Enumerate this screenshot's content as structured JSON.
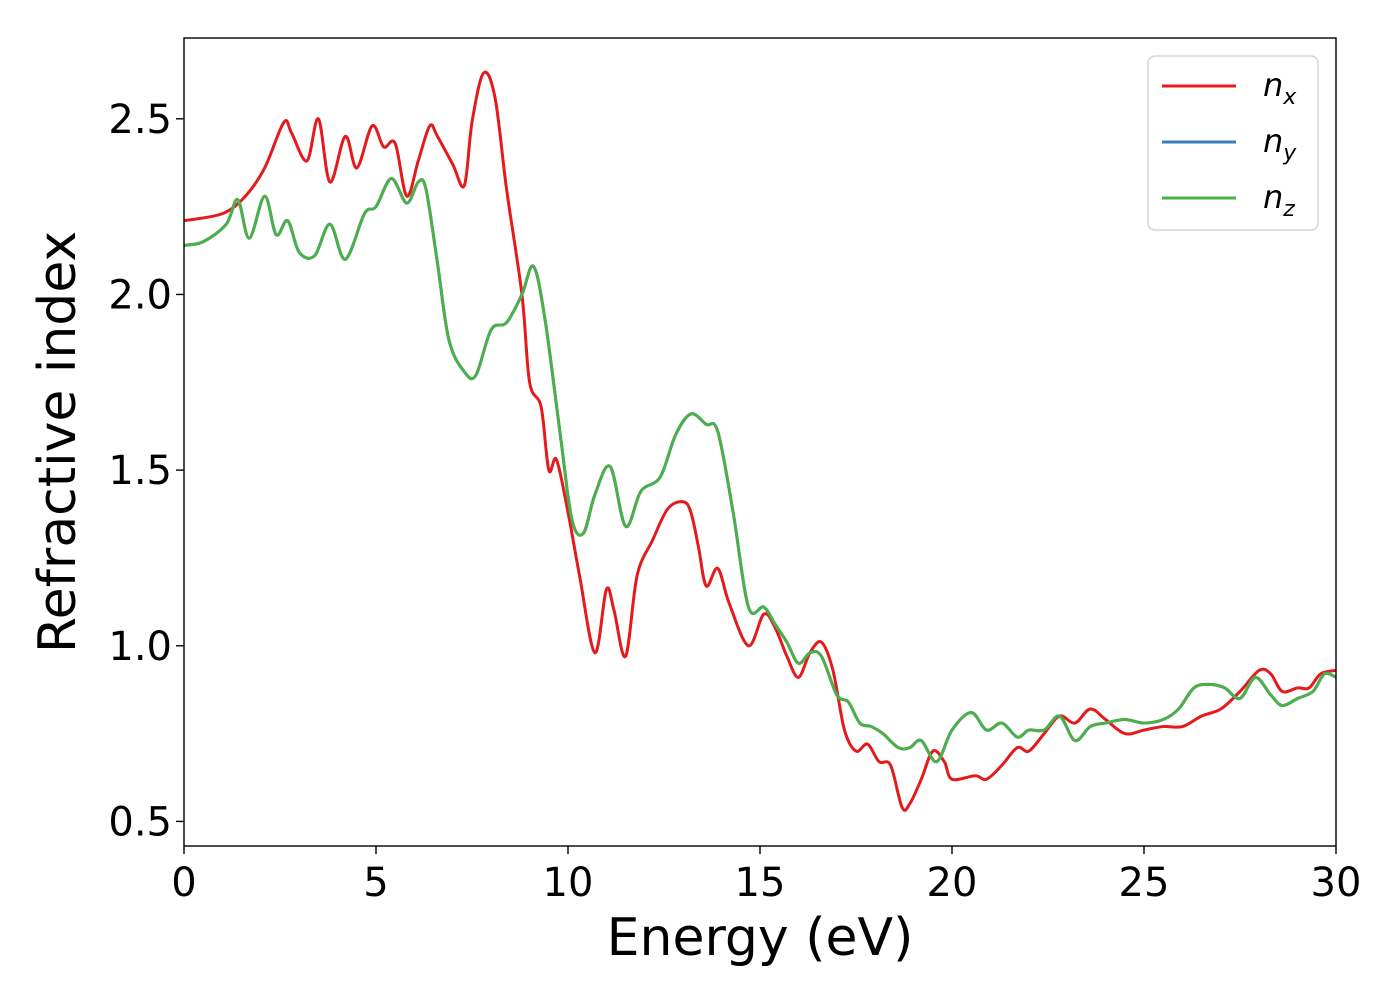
{
  "chart_data": {
    "type": "line",
    "xlabel": "Energy (eV)",
    "ylabel": "Refractive index",
    "xlim": [
      0,
      30
    ],
    "ylim": [
      0.43,
      2.73
    ],
    "xticks": [
      0,
      5,
      10,
      15,
      20,
      25,
      30
    ],
    "xtick_labels": [
      "0",
      "5",
      "10",
      "15",
      "20",
      "25",
      "30"
    ],
    "yticks": [
      0.5,
      1.0,
      1.5,
      2.0,
      2.5
    ],
    "ytick_labels": [
      "0.5",
      "1.0",
      "1.5",
      "2.0",
      "2.5"
    ],
    "grid": false,
    "legend_position": "top-right",
    "series": [
      {
        "name": "n_x",
        "label_base": "n",
        "label_sub": "x",
        "color": "#e41a1c",
        "points": [
          [
            0,
            2.21
          ],
          [
            1,
            2.23
          ],
          [
            1.6,
            2.28
          ],
          [
            2.1,
            2.36
          ],
          [
            2.6,
            2.49
          ],
          [
            2.8,
            2.46
          ],
          [
            3.2,
            2.38
          ],
          [
            3.5,
            2.5
          ],
          [
            3.8,
            2.32
          ],
          [
            4.2,
            2.45
          ],
          [
            4.5,
            2.36
          ],
          [
            4.9,
            2.48
          ],
          [
            5.2,
            2.42
          ],
          [
            5.5,
            2.43
          ],
          [
            5.8,
            2.28
          ],
          [
            6.1,
            2.38
          ],
          [
            6.4,
            2.48
          ],
          [
            6.6,
            2.45
          ],
          [
            7.0,
            2.37
          ],
          [
            7.3,
            2.31
          ],
          [
            7.5,
            2.49
          ],
          [
            7.8,
            2.63
          ],
          [
            8.1,
            2.56
          ],
          [
            8.4,
            2.3
          ],
          [
            8.8,
            2.0
          ],
          [
            9.0,
            1.75
          ],
          [
            9.3,
            1.68
          ],
          [
            9.5,
            1.5
          ],
          [
            9.7,
            1.53
          ],
          [
            10.0,
            1.38
          ],
          [
            10.3,
            1.2
          ],
          [
            10.7,
            0.98
          ],
          [
            11.0,
            1.16
          ],
          [
            11.2,
            1.1
          ],
          [
            11.5,
            0.97
          ],
          [
            11.8,
            1.2
          ],
          [
            12.2,
            1.3
          ],
          [
            12.6,
            1.39
          ],
          [
            13.0,
            1.41
          ],
          [
            13.2,
            1.38
          ],
          [
            13.4,
            1.28
          ],
          [
            13.6,
            1.17
          ],
          [
            13.9,
            1.22
          ],
          [
            14.2,
            1.12
          ],
          [
            14.7,
            1.0
          ],
          [
            15.1,
            1.09
          ],
          [
            15.4,
            1.05
          ],
          [
            15.7,
            0.97
          ],
          [
            16.0,
            0.91
          ],
          [
            16.3,
            0.98
          ],
          [
            16.6,
            1.01
          ],
          [
            16.9,
            0.93
          ],
          [
            17.2,
            0.76
          ],
          [
            17.5,
            0.7
          ],
          [
            17.8,
            0.72
          ],
          [
            18.1,
            0.67
          ],
          [
            18.4,
            0.66
          ],
          [
            18.7,
            0.54
          ],
          [
            18.9,
            0.55
          ],
          [
            19.2,
            0.62
          ],
          [
            19.5,
            0.7
          ],
          [
            19.8,
            0.67
          ],
          [
            20.0,
            0.62
          ],
          [
            20.6,
            0.63
          ],
          [
            20.9,
            0.62
          ],
          [
            21.3,
            0.66
          ],
          [
            21.7,
            0.71
          ],
          [
            22.0,
            0.7
          ],
          [
            22.4,
            0.75
          ],
          [
            22.8,
            0.8
          ],
          [
            23.2,
            0.78
          ],
          [
            23.6,
            0.82
          ],
          [
            24.0,
            0.79
          ],
          [
            24.5,
            0.75
          ],
          [
            25.0,
            0.76
          ],
          [
            25.5,
            0.77
          ],
          [
            26.0,
            0.77
          ],
          [
            26.5,
            0.8
          ],
          [
            27.0,
            0.82
          ],
          [
            27.5,
            0.87
          ],
          [
            28.0,
            0.93
          ],
          [
            28.3,
            0.92
          ],
          [
            28.6,
            0.87
          ],
          [
            29.0,
            0.88
          ],
          [
            29.3,
            0.88
          ],
          [
            29.6,
            0.92
          ],
          [
            30.0,
            0.93
          ]
        ]
      },
      {
        "name": "n_y",
        "label_base": "n",
        "label_sub": "y",
        "color": "#377eb8",
        "points": [
          [
            0,
            2.14
          ],
          [
            0.5,
            2.15
          ],
          [
            1.1,
            2.2
          ],
          [
            1.4,
            2.27
          ],
          [
            1.7,
            2.16
          ],
          [
            2.1,
            2.28
          ],
          [
            2.4,
            2.17
          ],
          [
            2.7,
            2.21
          ],
          [
            3.0,
            2.12
          ],
          [
            3.4,
            2.11
          ],
          [
            3.8,
            2.2
          ],
          [
            4.2,
            2.1
          ],
          [
            4.7,
            2.23
          ],
          [
            5.0,
            2.25
          ],
          [
            5.4,
            2.33
          ],
          [
            5.8,
            2.26
          ],
          [
            6.1,
            2.32
          ],
          [
            6.3,
            2.3
          ],
          [
            6.6,
            2.09
          ],
          [
            6.9,
            1.87
          ],
          [
            7.3,
            1.78
          ],
          [
            7.6,
            1.77
          ],
          [
            8.0,
            1.9
          ],
          [
            8.4,
            1.92
          ],
          [
            8.8,
            2.0
          ],
          [
            9.1,
            2.08
          ],
          [
            9.4,
            1.93
          ],
          [
            9.8,
            1.6
          ],
          [
            10.1,
            1.36
          ],
          [
            10.4,
            1.32
          ],
          [
            10.7,
            1.43
          ],
          [
            11.1,
            1.51
          ],
          [
            11.5,
            1.34
          ],
          [
            11.9,
            1.44
          ],
          [
            12.4,
            1.48
          ],
          [
            12.8,
            1.6
          ],
          [
            13.2,
            1.66
          ],
          [
            13.6,
            1.63
          ],
          [
            13.9,
            1.61
          ],
          [
            14.3,
            1.38
          ],
          [
            14.7,
            1.11
          ],
          [
            15.1,
            1.11
          ],
          [
            15.4,
            1.06
          ],
          [
            15.7,
            1.01
          ],
          [
            16.0,
            0.95
          ],
          [
            16.3,
            0.98
          ],
          [
            16.6,
            0.97
          ],
          [
            17.0,
            0.86
          ],
          [
            17.3,
            0.84
          ],
          [
            17.6,
            0.78
          ],
          [
            17.9,
            0.77
          ],
          [
            18.2,
            0.75
          ],
          [
            18.6,
            0.71
          ],
          [
            18.9,
            0.71
          ],
          [
            19.2,
            0.73
          ],
          [
            19.6,
            0.67
          ],
          [
            20.0,
            0.76
          ],
          [
            20.5,
            0.81
          ],
          [
            20.9,
            0.76
          ],
          [
            21.3,
            0.78
          ],
          [
            21.7,
            0.74
          ],
          [
            22.0,
            0.76
          ],
          [
            22.4,
            0.76
          ],
          [
            22.8,
            0.8
          ],
          [
            23.2,
            0.73
          ],
          [
            23.6,
            0.77
          ],
          [
            24.0,
            0.78
          ],
          [
            24.5,
            0.79
          ],
          [
            25.0,
            0.78
          ],
          [
            25.5,
            0.79
          ],
          [
            25.9,
            0.82
          ],
          [
            26.3,
            0.88
          ],
          [
            26.7,
            0.89
          ],
          [
            27.1,
            0.88
          ],
          [
            27.5,
            0.85
          ],
          [
            27.9,
            0.91
          ],
          [
            28.3,
            0.86
          ],
          [
            28.6,
            0.83
          ],
          [
            29.0,
            0.85
          ],
          [
            29.4,
            0.87
          ],
          [
            29.7,
            0.92
          ],
          [
            30.0,
            0.91
          ]
        ]
      },
      {
        "name": "n_z",
        "label_base": "n",
        "label_sub": "z",
        "color": "#4daf4a",
        "points": [
          [
            0,
            2.14
          ],
          [
            0.5,
            2.15
          ],
          [
            1.1,
            2.2
          ],
          [
            1.4,
            2.27
          ],
          [
            1.7,
            2.16
          ],
          [
            2.1,
            2.28
          ],
          [
            2.4,
            2.17
          ],
          [
            2.7,
            2.21
          ],
          [
            3.0,
            2.12
          ],
          [
            3.4,
            2.11
          ],
          [
            3.8,
            2.2
          ],
          [
            4.2,
            2.1
          ],
          [
            4.7,
            2.23
          ],
          [
            5.0,
            2.25
          ],
          [
            5.4,
            2.33
          ],
          [
            5.8,
            2.26
          ],
          [
            6.1,
            2.32
          ],
          [
            6.3,
            2.3
          ],
          [
            6.6,
            2.09
          ],
          [
            6.9,
            1.87
          ],
          [
            7.3,
            1.78
          ],
          [
            7.6,
            1.77
          ],
          [
            8.0,
            1.9
          ],
          [
            8.4,
            1.92
          ],
          [
            8.8,
            2.0
          ],
          [
            9.1,
            2.08
          ],
          [
            9.4,
            1.93
          ],
          [
            9.8,
            1.6
          ],
          [
            10.1,
            1.36
          ],
          [
            10.4,
            1.32
          ],
          [
            10.7,
            1.43
          ],
          [
            11.1,
            1.51
          ],
          [
            11.5,
            1.34
          ],
          [
            11.9,
            1.44
          ],
          [
            12.4,
            1.48
          ],
          [
            12.8,
            1.6
          ],
          [
            13.2,
            1.66
          ],
          [
            13.6,
            1.63
          ],
          [
            13.9,
            1.61
          ],
          [
            14.3,
            1.38
          ],
          [
            14.7,
            1.11
          ],
          [
            15.1,
            1.11
          ],
          [
            15.4,
            1.06
          ],
          [
            15.7,
            1.01
          ],
          [
            16.0,
            0.95
          ],
          [
            16.3,
            0.98
          ],
          [
            16.6,
            0.97
          ],
          [
            17.0,
            0.86
          ],
          [
            17.3,
            0.84
          ],
          [
            17.6,
            0.78
          ],
          [
            17.9,
            0.77
          ],
          [
            18.2,
            0.75
          ],
          [
            18.6,
            0.71
          ],
          [
            18.9,
            0.71
          ],
          [
            19.2,
            0.73
          ],
          [
            19.6,
            0.67
          ],
          [
            20.0,
            0.76
          ],
          [
            20.5,
            0.81
          ],
          [
            20.9,
            0.76
          ],
          [
            21.3,
            0.78
          ],
          [
            21.7,
            0.74
          ],
          [
            22.0,
            0.76
          ],
          [
            22.4,
            0.76
          ],
          [
            22.8,
            0.8
          ],
          [
            23.2,
            0.73
          ],
          [
            23.6,
            0.77
          ],
          [
            24.0,
            0.78
          ],
          [
            24.5,
            0.79
          ],
          [
            25.0,
            0.78
          ],
          [
            25.5,
            0.79
          ],
          [
            25.9,
            0.82
          ],
          [
            26.3,
            0.88
          ],
          [
            26.7,
            0.89
          ],
          [
            27.1,
            0.88
          ],
          [
            27.5,
            0.85
          ],
          [
            27.9,
            0.91
          ],
          [
            28.3,
            0.86
          ],
          [
            28.6,
            0.83
          ],
          [
            29.0,
            0.85
          ],
          [
            29.4,
            0.87
          ],
          [
            29.7,
            0.92
          ],
          [
            30.0,
            0.91
          ]
        ]
      }
    ]
  }
}
